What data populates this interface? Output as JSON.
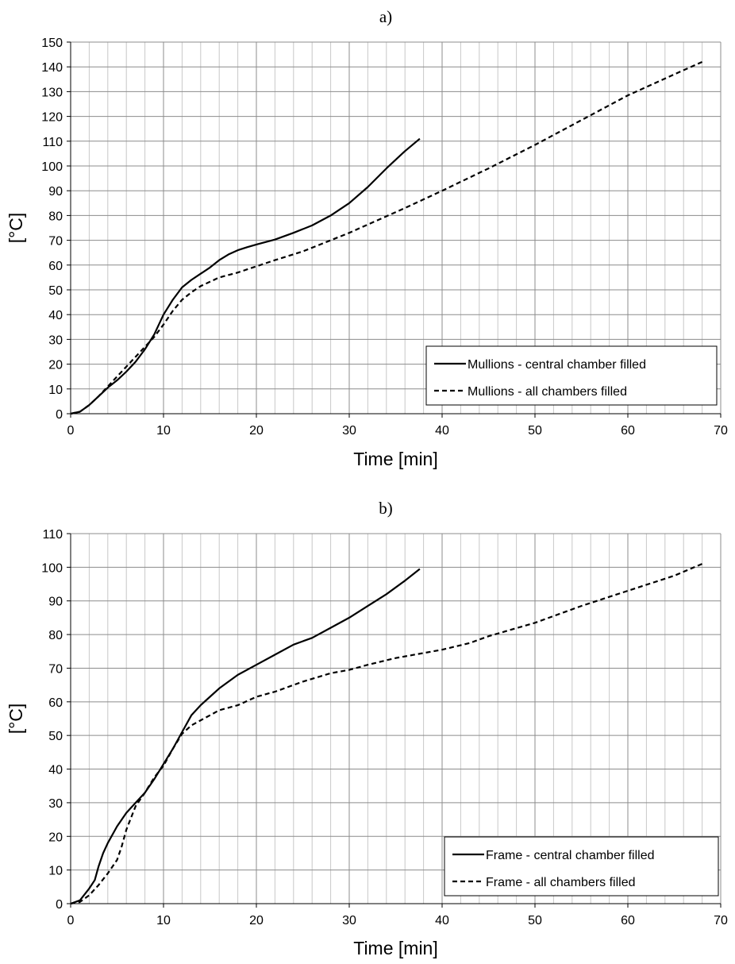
{
  "chart_data": [
    {
      "type": "line",
      "panel_label": "a)",
      "xlabel": "Time [min]",
      "ylabel": "[°C]",
      "xlim": [
        0,
        70
      ],
      "ylim": [
        0,
        150
      ],
      "xticks": [
        0,
        10,
        20,
        30,
        40,
        50,
        60,
        70
      ],
      "yticks": [
        0,
        10,
        20,
        30,
        40,
        50,
        60,
        70,
        80,
        90,
        100,
        110,
        120,
        130,
        140,
        150
      ],
      "x_minor_step": 2,
      "grid": true,
      "legend_position": "bottom-right",
      "series": [
        {
          "name": "Mullions - central chamber filled",
          "style": "solid",
          "color": "#000000",
          "x": [
            0,
            1,
            2,
            3,
            4,
            5,
            6,
            7,
            8,
            9,
            10,
            11,
            12,
            13,
            14,
            15,
            16,
            17,
            18,
            19,
            20,
            22,
            24,
            26,
            28,
            30,
            32,
            34,
            36,
            37.6
          ],
          "y": [
            0,
            0.8,
            3.5,
            7,
            10.5,
            13.5,
            17,
            21,
            26,
            32,
            40,
            46,
            51,
            54,
            56.5,
            59,
            62,
            64.3,
            66,
            67.2,
            68.3,
            70.3,
            73,
            76,
            80,
            85,
            91.5,
            99,
            106,
            111
          ]
        },
        {
          "name": "Mullions - all chambers filled",
          "style": "dashed",
          "color": "#000000",
          "x": [
            0,
            1,
            2,
            3,
            4,
            5,
            6,
            7,
            8,
            9,
            10,
            11,
            12,
            13,
            14,
            16,
            18,
            20,
            22,
            25,
            28,
            30,
            33,
            36,
            40,
            45,
            50,
            55,
            60,
            65,
            68
          ],
          "y": [
            0,
            0.8,
            3.5,
            7,
            11,
            15,
            19,
            23,
            27,
            31,
            36,
            41.5,
            46,
            49,
            51.5,
            55,
            57,
            59.5,
            62,
            65.5,
            70,
            73,
            78,
            83,
            90,
            99,
            108.5,
            118.5,
            128.5,
            137,
            142
          ]
        }
      ]
    },
    {
      "type": "line",
      "panel_label": "b)",
      "xlabel": "Time [min]",
      "ylabel": "[°C]",
      "xlim": [
        0,
        70
      ],
      "ylim": [
        0,
        110
      ],
      "xticks": [
        0,
        10,
        20,
        30,
        40,
        50,
        60,
        70
      ],
      "yticks": [
        0,
        10,
        20,
        30,
        40,
        50,
        60,
        70,
        80,
        90,
        100,
        110
      ],
      "x_minor_step": 2,
      "grid": true,
      "legend_position": "bottom-right",
      "series": [
        {
          "name": "Frame - central chamber filled",
          "style": "solid",
          "color": "#000000",
          "x": [
            0,
            1,
            2,
            2.6,
            3,
            3.5,
            4,
            5,
            6,
            7,
            8,
            9,
            10,
            11,
            12,
            13,
            14,
            15,
            16,
            18,
            20,
            22,
            24,
            26,
            28,
            30,
            32,
            34,
            36,
            37.6
          ],
          "y": [
            0,
            1,
            4.5,
            7,
            11,
            15,
            18,
            23,
            27,
            30,
            33,
            37,
            41.5,
            46,
            51,
            56,
            59,
            61.5,
            64,
            68,
            71,
            74,
            77,
            79,
            82,
            85,
            88.5,
            92,
            96,
            99.5
          ]
        },
        {
          "name": "Frame - all chambers filled",
          "style": "dashed",
          "color": "#000000",
          "x": [
            0,
            1,
            2,
            3,
            4,
            5,
            5.5,
            6,
            7,
            8,
            9,
            10,
            11,
            12,
            13,
            14,
            15,
            16,
            18,
            20,
            22,
            25,
            28,
            30,
            32,
            35,
            38,
            40,
            43,
            45,
            50,
            55,
            60,
            65,
            68
          ],
          "y": [
            0,
            0.5,
            2.5,
            5.5,
            9,
            13,
            17,
            22,
            29,
            33,
            37.5,
            41,
            46,
            50.5,
            53,
            54.5,
            56,
            57.5,
            59,
            61.5,
            63,
            66,
            68.5,
            69.5,
            71,
            73,
            74.5,
            75.5,
            77.5,
            79.5,
            83.5,
            88.5,
            93,
            97.5,
            101
          ]
        }
      ]
    }
  ]
}
